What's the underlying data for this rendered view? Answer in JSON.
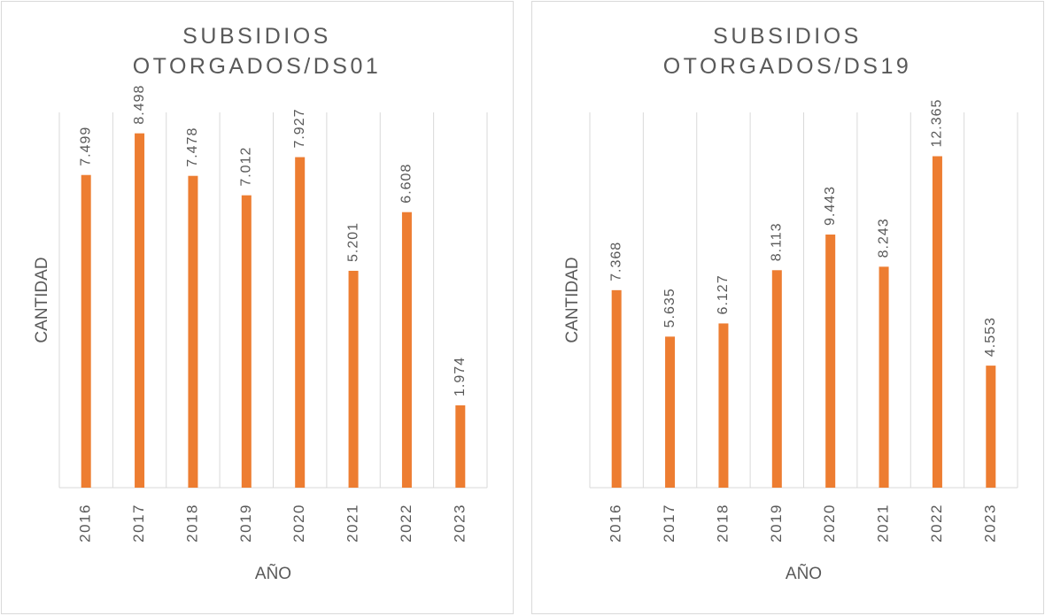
{
  "chart_data": [
    {
      "type": "bar",
      "title": "SUBSIDIOS OTORGADOS/DS01",
      "x_label": "AÑO",
      "y_label": "CANTIDAD",
      "categories": [
        "2016",
        "2017",
        "2018",
        "2019",
        "2020",
        "2021",
        "2022",
        "2023"
      ],
      "values": [
        7499,
        8498,
        7478,
        7012,
        7927,
        5201,
        6608,
        1974
      ],
      "value_labels": [
        "7.499",
        "8.498",
        "7.478",
        "7.012",
        "7.927",
        "5.201",
        "6.608",
        "1.974"
      ],
      "color": "#ed7d31",
      "ylim": [
        0,
        9000
      ],
      "grid": true
    },
    {
      "type": "bar",
      "title": "SUBSIDIOS OTORGADOS/DS19",
      "x_label": "AÑO",
      "y_label": "CANTIDAD",
      "categories": [
        "2016",
        "2017",
        "2018",
        "2019",
        "2020",
        "2021",
        "2022",
        "2023"
      ],
      "values": [
        7368,
        5635,
        6127,
        8113,
        9443,
        8243,
        12365,
        4553
      ],
      "value_labels": [
        "7.368",
        "5.635",
        "6.127",
        "8.113",
        "9.443",
        "8.243",
        "12.365",
        "4.553"
      ],
      "color": "#ed7d31",
      "ylim": [
        0,
        14000
      ],
      "grid": true
    }
  ]
}
